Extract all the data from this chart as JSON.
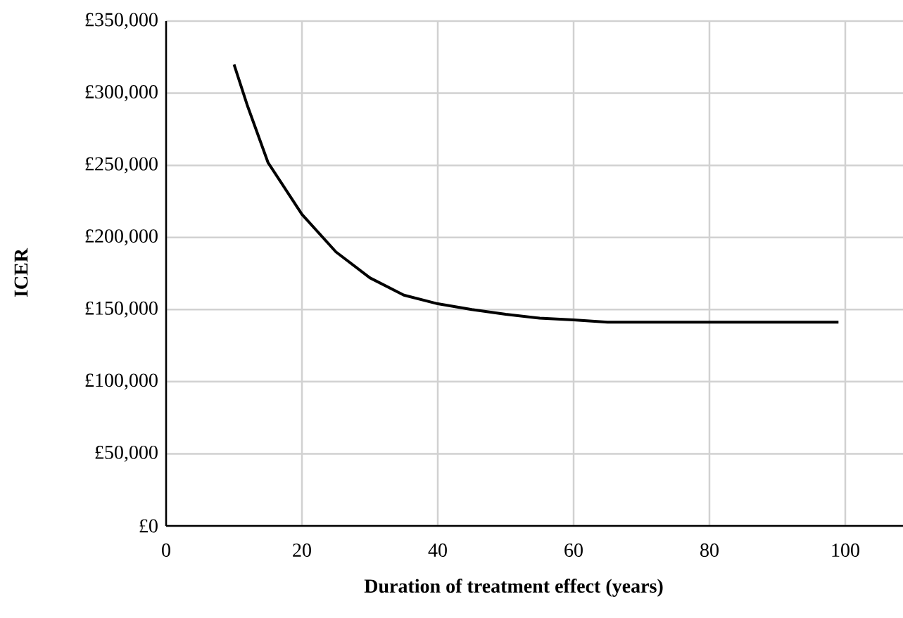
{
  "chart_data": {
    "type": "line",
    "xlabel": "Duration of treatment effect (years)",
    "ylabel": "ICER",
    "x": [
      10,
      12,
      15,
      20,
      25,
      30,
      35,
      40,
      45,
      50,
      55,
      60,
      65,
      70,
      80,
      90,
      99
    ],
    "series": [
      {
        "color": "#000000",
        "values": [
          320000,
          291000,
          252000,
          216000,
          190000,
          172000,
          160000,
          154000,
          150000,
          146700,
          144000,
          142800,
          141300,
          141300,
          141300,
          141300,
          141300
        ]
      }
    ],
    "xlim": [
      0,
      108.5
    ],
    "ylim": [
      0,
      350000
    ],
    "xticks": [
      0,
      20,
      40,
      60,
      80,
      100
    ],
    "yticks": [
      {
        "value": 0,
        "label": "£0"
      },
      {
        "value": 50000,
        "label": "£50,000"
      },
      {
        "value": 100000,
        "label": "£100,000"
      },
      {
        "value": 150000,
        "label": "£150,000"
      },
      {
        "value": 200000,
        "label": "£200,000"
      },
      {
        "value": 250000,
        "label": "£250,000"
      },
      {
        "value": 300000,
        "label": "£300,000"
      },
      {
        "value": 350000,
        "label": "£350,000"
      }
    ],
    "grid": true,
    "marker": "none",
    "line_style": "solid"
  }
}
